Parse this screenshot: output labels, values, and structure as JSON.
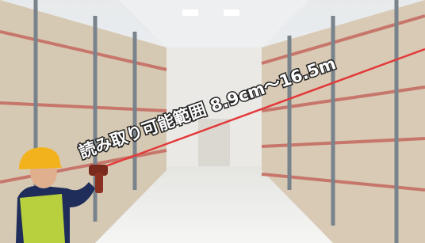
{
  "caption": "読み取り可能範囲 8.9cm～16.5m"
}
